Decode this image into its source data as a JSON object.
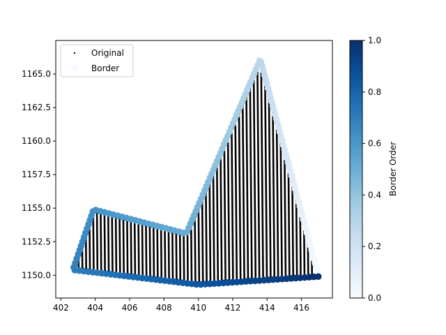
{
  "chart_data": {
    "type": "scatter",
    "title": "",
    "xlabel": "",
    "ylabel": "",
    "xlim": [
      401.7,
      417.8
    ],
    "ylim": [
      1148.3,
      1167.5
    ],
    "x_ticks": [
      402,
      404,
      406,
      408,
      410,
      412,
      414,
      416
    ],
    "x_tick_labels": [
      "402",
      "404",
      "406",
      "408",
      "410",
      "412",
      "414",
      "416"
    ],
    "y_ticks": [
      1150.0,
      1152.5,
      1155.0,
      1157.5,
      1160.0,
      1162.5,
      1165.0
    ],
    "y_tick_labels": [
      "1150.0",
      "1152.5",
      "1155.0",
      "1157.5",
      "1160.0",
      "1162.5",
      "1165.0"
    ],
    "grid": false,
    "legend": {
      "placement": "top-left",
      "entries": [
        {
          "name": "Original",
          "color": "#000000",
          "marker": "small-dot"
        },
        {
          "name": "Border",
          "color": "#f7fbff",
          "marker": "circle"
        }
      ]
    },
    "colorbar": {
      "label": "Border Order",
      "colormap": "Blues",
      "range": [
        0.0,
        1.0
      ],
      "ticks": [
        0.0,
        0.2,
        0.4,
        0.6,
        0.8,
        1.0
      ],
      "tick_labels": [
        "0.0",
        "0.2",
        "0.4",
        "0.6",
        "0.8",
        "1.0"
      ],
      "colors": [
        "#f7fbff",
        "#deebf7",
        "#c6dbef",
        "#9ecae1",
        "#6baed6",
        "#4292c6",
        "#2171b5",
        "#08519c",
        "#08306b"
      ]
    },
    "series": [
      {
        "name": "Original",
        "kind": "dense-stripes",
        "color": "#000000",
        "polygon": [
          [
            402.7,
            1150.4
          ],
          [
            403.9,
            1154.9
          ],
          [
            409.3,
            1153.1
          ],
          [
            413.6,
            1166.1
          ],
          [
            417.0,
            1149.9
          ],
          [
            410.0,
            1149.3
          ]
        ]
      },
      {
        "name": "Border",
        "kind": "colored-border",
        "vertices": [
          [
            417.0,
            1149.9
          ],
          [
            413.6,
            1166.1
          ],
          [
            409.3,
            1153.1
          ],
          [
            403.9,
            1154.9
          ],
          [
            402.7,
            1150.4
          ],
          [
            410.0,
            1149.3
          ],
          [
            417.0,
            1149.9
          ]
        ],
        "order_range": [
          0.0,
          1.0
        ]
      }
    ]
  }
}
